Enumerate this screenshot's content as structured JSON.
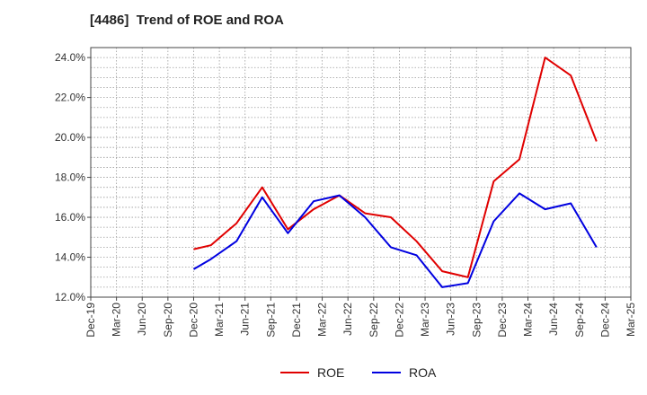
{
  "chart_data": {
    "type": "line",
    "title": "[4486]  Trend of ROE and ROA",
    "xlabel": "",
    "ylabel": "",
    "x_ticks": [
      "Dec-19",
      "Mar-20",
      "Jun-20",
      "Sep-20",
      "Dec-20",
      "Mar-21",
      "Jun-21",
      "Sep-21",
      "Dec-21",
      "Mar-22",
      "Jun-22",
      "Sep-22",
      "Dec-22",
      "Mar-23",
      "Jun-23",
      "Sep-23",
      "Dec-23",
      "Mar-24",
      "Jun-24",
      "Sep-24",
      "Dec-24",
      "Mar-25"
    ],
    "y_ticks": [
      "12.0%",
      "14.0%",
      "16.0%",
      "18.0%",
      "20.0%",
      "22.0%",
      "24.0%"
    ],
    "ylim": [
      12.0,
      24.5
    ],
    "grid": true,
    "legend_position": "bottom-center",
    "series": [
      {
        "name": "ROE",
        "color": "#e00000",
        "x": [
          "Dec-20",
          "Feb-21",
          "May-21",
          "Aug-21",
          "Nov-21",
          "Feb-22",
          "May-22",
          "Aug-22",
          "Nov-22",
          "Feb-23",
          "May-23",
          "Aug-23",
          "Nov-23",
          "Feb-24",
          "May-24",
          "Aug-24",
          "Nov-24"
        ],
        "values": [
          14.4,
          14.6,
          15.7,
          17.5,
          15.4,
          16.4,
          17.1,
          16.2,
          16.0,
          14.8,
          13.3,
          13.0,
          17.8,
          18.9,
          24.0,
          23.1,
          19.8
        ]
      },
      {
        "name": "ROA",
        "color": "#0000e0",
        "x": [
          "Dec-20",
          "Feb-21",
          "May-21",
          "Aug-21",
          "Nov-21",
          "Feb-22",
          "May-22",
          "Aug-22",
          "Nov-22",
          "Feb-23",
          "May-23",
          "Aug-23",
          "Nov-23",
          "Feb-24",
          "May-24",
          "Aug-24",
          "Nov-24"
        ],
        "values": [
          13.4,
          13.9,
          14.8,
          17.0,
          15.2,
          16.8,
          17.1,
          16.0,
          14.5,
          14.1,
          12.5,
          12.7,
          15.8,
          17.2,
          16.4,
          16.7,
          14.5
        ]
      }
    ]
  }
}
